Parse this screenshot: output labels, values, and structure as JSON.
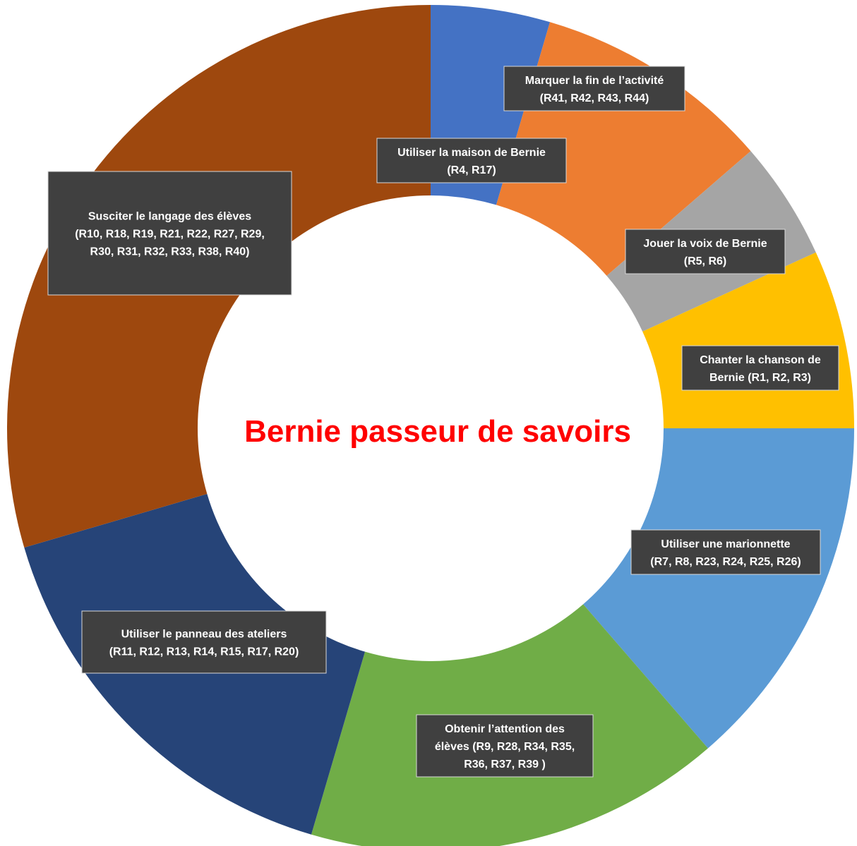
{
  "chart_data": {
    "type": "donut",
    "center_label": "Bernie passeur de savoirs",
    "center_color": "#ff0000",
    "slices": [
      {
        "lines": [
          "Utiliser la maison de Bernie",
          "(R4, R17)"
        ],
        "value": 2,
        "color": "#4472c4"
      },
      {
        "lines": [
          "Marquer la fin de l’activité",
          "(R41, R42, R43, R44)"
        ],
        "value": 4,
        "color": "#ed7d31"
      },
      {
        "lines": [
          "Jouer la voix de Bernie",
          "(R5, R6)"
        ],
        "value": 2,
        "color": "#a5a5a5"
      },
      {
        "lines": [
          "Chanter la chanson de",
          "Bernie (R1, R2, R3)"
        ],
        "value": 3,
        "color": "#ffc000"
      },
      {
        "lines": [
          "Utiliser une marionnette",
          "(R7, R8, R23, R24, R25, R26)"
        ],
        "value": 6,
        "color": "#5b9bd5"
      },
      {
        "lines": [
          "Obtenir l’attention des",
          "élèves (R9, R28, R34, R35,",
          "R36, R37, R39 )"
        ],
        "value": 7,
        "color": "#70ad47"
      },
      {
        "lines": [
          "Utiliser le panneau des ateliers",
          "(R11, R12, R13, R14, R15, R17, R20)"
        ],
        "value": 7,
        "color": "#264478"
      },
      {
        "lines": [
          "Susciter le langage des élèves",
          "(R10, R18, R19, R21, R22, R27, R29,",
          "R30, R31, R32, R33, R38, R40)"
        ],
        "value": 13,
        "color": "#9e480e"
      }
    ]
  }
}
